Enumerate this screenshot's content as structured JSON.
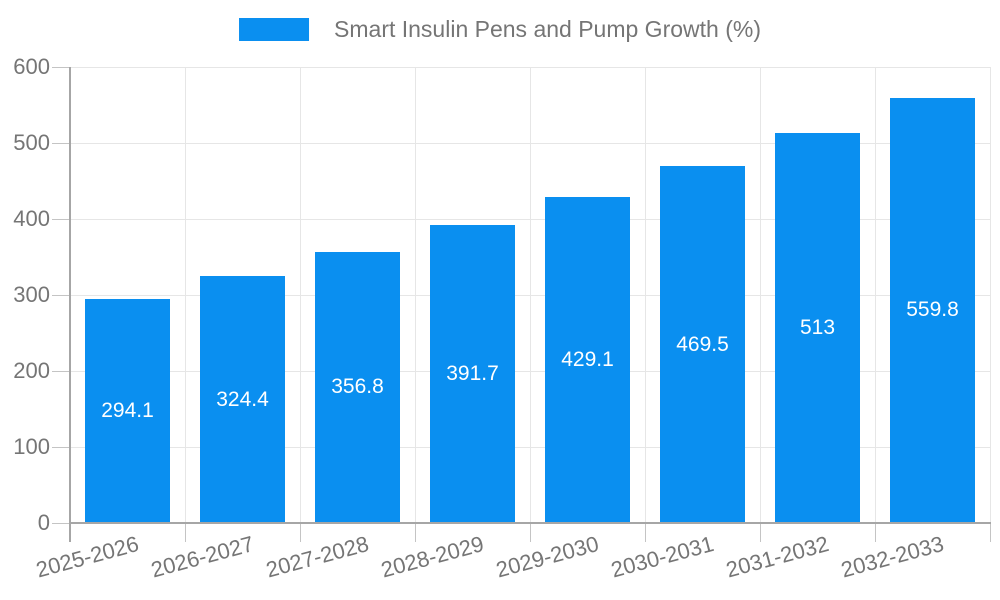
{
  "chart_data": {
    "type": "bar",
    "title": "Smart Insulin Pens and Pump Growth (%)",
    "categories": [
      "2025-2026",
      "2026-2027",
      "2027-2028",
      "2028-2029",
      "2029-2030",
      "2030-2031",
      "2031-2032",
      "2032-2033"
    ],
    "values": [
      294.1,
      324.4,
      356.8,
      391.7,
      429.1,
      469.5,
      513,
      559.8
    ],
    "value_labels": [
      "294.1",
      "324.4",
      "356.8",
      "391.7",
      "429.1",
      "469.5",
      "513",
      "559.8"
    ],
    "xlabel": "",
    "ylabel": "",
    "ylim": [
      0,
      600
    ],
    "yticks": [
      0,
      100,
      200,
      300,
      400,
      500,
      600
    ],
    "ytick_labels": [
      "0",
      "100",
      "200",
      "300",
      "400",
      "500",
      "600"
    ],
    "grid": true,
    "legend_position": "top",
    "colors": {
      "bar": "#0A8FF0",
      "bar_value_text": "#ffffff",
      "axis_text": "#757575",
      "axis_line": "#a6a6a6",
      "gridline": "#e6e6e6",
      "tick": "#c4c4c4",
      "background": "#ffffff"
    }
  }
}
